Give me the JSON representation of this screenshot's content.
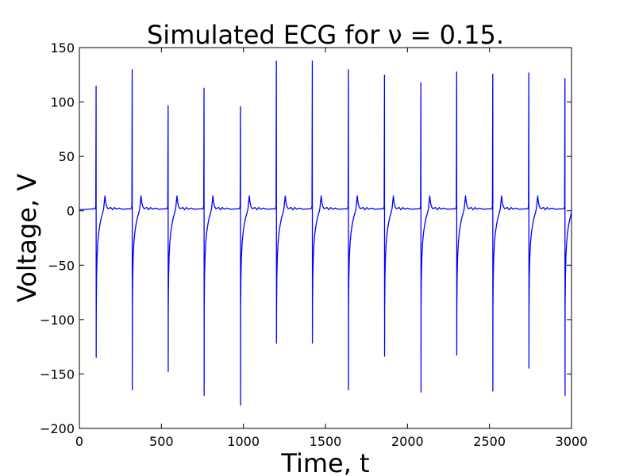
{
  "chart_data": {
    "type": "line",
    "title": "Simulated ECG for ν = 0.15.",
    "xlabel": "Time, t",
    "ylabel": "Voltage, V",
    "xlim": [
      0,
      3000
    ],
    "ylim": [
      -200,
      150
    ],
    "xticks": [
      0,
      500,
      1000,
      1500,
      2000,
      2500,
      3000
    ],
    "yticks": [
      -200,
      -150,
      -100,
      -50,
      0,
      50,
      100,
      150
    ],
    "grid": false,
    "line_color": "#0000ff",
    "series": [
      {
        "name": "",
        "beats": [
          {
            "t": 102,
            "peak": 115,
            "trough": -135
          },
          {
            "t": 322,
            "peak": 130,
            "trough": -165
          },
          {
            "t": 541,
            "peak": 97,
            "trough": -148
          },
          {
            "t": 760,
            "peak": 113,
            "trough": -170
          },
          {
            "t": 982,
            "peak": 96,
            "trough": -179
          },
          {
            "t": 1201,
            "peak": 138,
            "trough": -122
          },
          {
            "t": 1420,
            "peak": 138,
            "trough": -122
          },
          {
            "t": 1640,
            "peak": 130,
            "trough": -165
          },
          {
            "t": 1860,
            "peak": 125,
            "trough": -134
          },
          {
            "t": 2082,
            "peak": 118,
            "trough": -167
          },
          {
            "t": 2300,
            "peak": 128,
            "trough": -133
          },
          {
            "t": 2520,
            "peak": 126,
            "trough": -166
          },
          {
            "t": 2740,
            "peak": 127,
            "trough": -145
          },
          {
            "t": 2960,
            "peak": 122,
            "trough": -170
          }
        ]
      }
    ]
  }
}
